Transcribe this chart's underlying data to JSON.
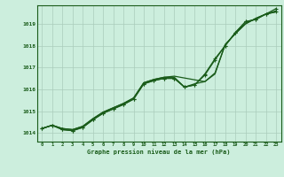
{
  "background_color": "#cceedd",
  "grid_color": "#aaccbb",
  "line_color": "#1a5c1a",
  "xlabel": "Graphe pression niveau de la mer (hPa)",
  "xlim": [
    -0.5,
    23.5
  ],
  "ylim": [
    1013.6,
    1019.85
  ],
  "yticks": [
    1014,
    1015,
    1016,
    1017,
    1018,
    1019
  ],
  "xticks": [
    0,
    1,
    2,
    3,
    4,
    5,
    6,
    7,
    8,
    9,
    10,
    11,
    12,
    13,
    14,
    15,
    16,
    17,
    18,
    19,
    20,
    21,
    22,
    23
  ],
  "series": [
    {
      "x": [
        0,
        1,
        2,
        3,
        4,
        5,
        6,
        7,
        8,
        9,
        10,
        11,
        12,
        13,
        16,
        17,
        18,
        19,
        20,
        21,
        22,
        23
      ],
      "y": [
        1014.2,
        1014.35,
        1014.2,
        1014.15,
        1014.3,
        1014.65,
        1014.95,
        1015.15,
        1015.35,
        1015.6,
        1016.3,
        1016.45,
        1016.55,
        1016.6,
        1016.35,
        1016.75,
        1018.05,
        1018.55,
        1019.0,
        1019.25,
        1019.45,
        1019.6
      ],
      "marker": false,
      "lw": 0.9
    },
    {
      "x": [
        0,
        1,
        2,
        3,
        4,
        5,
        6,
        7,
        8,
        9,
        10,
        11,
        12,
        13,
        14,
        15,
        16,
        17,
        18,
        19,
        20,
        21,
        22,
        23
      ],
      "y": [
        1014.2,
        1014.35,
        1014.2,
        1014.15,
        1014.3,
        1014.65,
        1014.95,
        1015.15,
        1015.35,
        1015.6,
        1016.3,
        1016.45,
        1016.55,
        1016.55,
        1016.1,
        1016.25,
        1016.35,
        1016.7,
        1018.05,
        1018.55,
        1019.0,
        1019.25,
        1019.45,
        1019.55
      ],
      "marker": false,
      "lw": 0.9
    },
    {
      "x": [
        0,
        1,
        2,
        3,
        4,
        5,
        6,
        7,
        8,
        9,
        10,
        11,
        12,
        13,
        14,
        15,
        16,
        17,
        18,
        19,
        20,
        21,
        22,
        23
      ],
      "y": [
        1014.2,
        1014.35,
        1014.15,
        1014.1,
        1014.25,
        1014.6,
        1014.9,
        1015.1,
        1015.3,
        1015.55,
        1016.25,
        1016.4,
        1016.5,
        1016.5,
        1016.1,
        1016.2,
        1016.65,
        1017.35,
        1018.0,
        1018.6,
        1019.1,
        1019.2,
        1019.45,
        1019.55
      ],
      "marker": true,
      "lw": 0.9
    },
    {
      "x": [
        0,
        1,
        2,
        3,
        4,
        5,
        6,
        7,
        8,
        9,
        10,
        11,
        12,
        13,
        14,
        15,
        16,
        17,
        18,
        19,
        20,
        21,
        22,
        23
      ],
      "y": [
        1014.2,
        1014.35,
        1014.15,
        1014.1,
        1014.25,
        1014.6,
        1014.9,
        1015.1,
        1015.3,
        1015.55,
        1016.25,
        1016.4,
        1016.5,
        1016.5,
        1016.1,
        1016.2,
        1016.7,
        1017.4,
        1018.0,
        1018.6,
        1019.1,
        1019.2,
        1019.45,
        1019.7
      ],
      "marker": true,
      "lw": 0.9
    }
  ]
}
